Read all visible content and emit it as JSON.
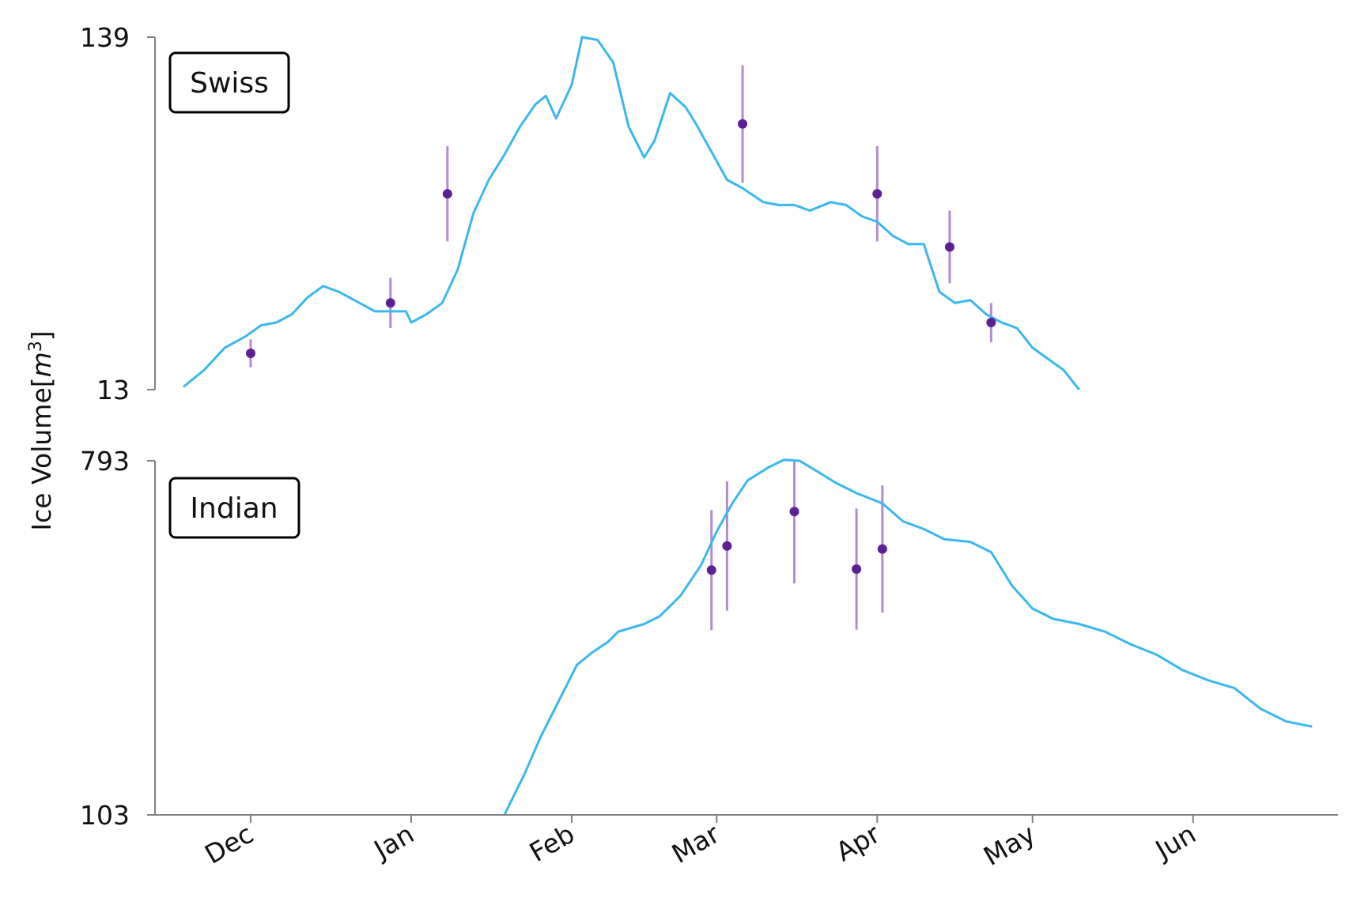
{
  "chart_data": {
    "type": "line",
    "ylabel": "Ice Volume",
    "ylabel_unit_base": "m",
    "ylabel_unit_exp": "3",
    "xlabel": "",
    "x_tick_labels": [
      "Dec",
      "Jan",
      "Feb",
      "Mar",
      "Apr",
      "May",
      "Jun"
    ],
    "colors": {
      "line": "#3bb7ef",
      "point": "#5d1f95",
      "errorbar": "#b38ad6",
      "axis": "#808080"
    },
    "panels": [
      {
        "label": "Swiss",
        "ylim": [
          13,
          139
        ],
        "y_ticks": [
          "139",
          "13"
        ],
        "line": {
          "x": [
            "2020-11-18",
            "2020-11-22",
            "2020-11-26",
            "2020-11-30",
            "2020-12-03",
            "2020-12-06",
            "2020-12-09",
            "2020-12-12",
            "2020-12-15",
            "2020-12-18",
            "2020-12-21",
            "2020-12-25",
            "2020-12-28",
            "2020-12-31",
            "2021-01-01",
            "2021-01-04",
            "2021-01-07",
            "2021-01-10",
            "2021-01-13",
            "2021-01-16",
            "2021-01-19",
            "2021-01-22",
            "2021-01-25",
            "2021-01-27",
            "2021-01-29",
            "2021-02-01",
            "2021-02-03",
            "2021-02-06",
            "2021-02-09",
            "2021-02-12",
            "2021-02-15",
            "2021-02-17",
            "2021-02-20",
            "2021-02-23",
            "2021-02-25",
            "2021-02-28",
            "2021-03-03",
            "2021-03-06",
            "2021-03-10",
            "2021-03-13",
            "2021-03-16",
            "2021-03-19",
            "2021-03-23",
            "2021-03-26",
            "2021-03-29",
            "2021-04-01",
            "2021-04-04",
            "2021-04-07",
            "2021-04-10",
            "2021-04-13",
            "2021-04-16",
            "2021-04-19",
            "2021-04-22",
            "2021-04-25",
            "2021-04-28",
            "2021-05-01",
            "2021-05-04",
            "2021-05-07",
            "2021-05-10"
          ],
          "y": [
            14,
            20,
            28,
            32,
            36,
            37,
            40,
            46,
            50,
            48,
            45,
            41,
            41,
            41,
            37,
            40,
            44,
            56,
            76,
            88,
            97,
            107,
            115,
            118,
            110,
            122,
            139,
            138,
            130,
            107,
            96,
            102,
            119,
            114,
            108,
            98,
            88,
            85,
            80,
            79,
            79,
            77,
            80,
            79,
            75,
            73,
            68,
            65,
            65,
            48,
            44,
            45,
            40,
            37,
            35,
            28,
            24,
            20,
            13
          ]
        },
        "points": {
          "x": [
            "2020-12-01",
            "2020-12-28",
            "2021-01-08",
            "2021-03-06",
            "2021-04-01",
            "2021-04-15",
            "2021-04-23"
          ],
          "y": [
            26,
            44,
            83,
            108,
            83,
            64,
            37
          ],
          "err": [
            5,
            9,
            17,
            21,
            17,
            13,
            7
          ]
        }
      },
      {
        "label": "Indian",
        "ylim": [
          103,
          793
        ],
        "y_ticks": [
          "793",
          "103"
        ],
        "line": {
          "x": [
            "2021-01-19",
            "2021-01-23",
            "2021-01-26",
            "2021-01-29",
            "2021-02-02",
            "2021-02-05",
            "2021-02-08",
            "2021-02-10",
            "2021-02-15",
            "2021-02-18",
            "2021-02-22",
            "2021-02-26",
            "2021-03-01",
            "2021-03-04",
            "2021-03-07",
            "2021-03-11",
            "2021-03-14",
            "2021-03-17",
            "2021-03-20",
            "2021-03-24",
            "2021-03-28",
            "2021-04-02",
            "2021-04-06",
            "2021-04-10",
            "2021-04-14",
            "2021-04-19",
            "2021-04-23",
            "2021-04-27",
            "2021-05-01",
            "2021-05-05",
            "2021-05-10",
            "2021-05-15",
            "2021-05-20",
            "2021-05-25",
            "2021-05-30",
            "2021-06-04",
            "2021-06-09",
            "2021-06-14",
            "2021-06-19",
            "2021-06-24"
          ],
          "y": [
            103,
            185,
            255,
            315,
            395,
            420,
            440,
            460,
            475,
            490,
            530,
            590,
            655,
            710,
            755,
            780,
            795,
            793,
            775,
            750,
            730,
            710,
            675,
            660,
            640,
            635,
            615,
            550,
            505,
            485,
            475,
            460,
            435,
            415,
            385,
            365,
            350,
            310,
            285,
            275
          ]
        },
        "points": {
          "x": [
            "2021-02-28",
            "2021-03-03",
            "2021-03-16",
            "2021-03-28",
            "2021-04-02"
          ],
          "y": [
            580,
            627,
            694,
            582,
            621
          ],
          "err": [
            117,
            126,
            140,
            118,
            124
          ]
        }
      }
    ],
    "grid": false,
    "legend": "none"
  }
}
